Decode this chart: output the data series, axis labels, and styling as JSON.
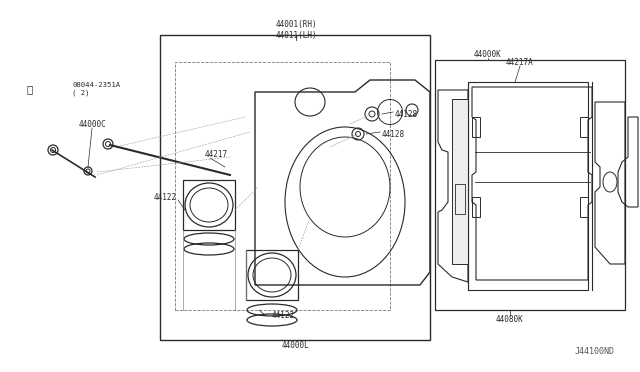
{
  "bg_color": "#ffffff",
  "line_color": "#2a2a2a",
  "title_bottom": "J44100ND",
  "labels": {
    "bolt": "08044-2351A\n( 2)",
    "44000C": "44000C",
    "44217": "44217",
    "44122_top": "44122",
    "44122_bot": "44122",
    "44001": "44001(RH)\n44011(LH)",
    "44128_top": "44128",
    "44128_bot": "44128",
    "44000L": "44000L",
    "44000K": "44000K",
    "44217A": "44217A",
    "44080K": "44080K"
  }
}
